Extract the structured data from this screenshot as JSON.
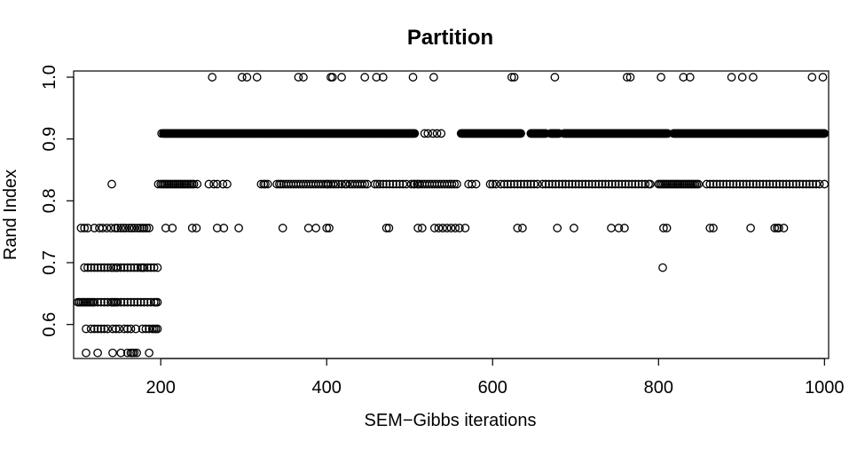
{
  "chart_data": {
    "type": "scatter",
    "title": "Partition",
    "xlabel": "SEM−Gibbs iterations",
    "ylabel": "Rand Index",
    "xlim": [
      95,
      1005
    ],
    "ylim": [
      0.545,
      1.01
    ],
    "xticks": [
      200,
      400,
      600,
      800,
      1000
    ],
    "xtick_labels": [
      "200",
      "400",
      "600",
      "800",
      "1000"
    ],
    "yticks": [
      0.6,
      0.7,
      0.8,
      0.9,
      1.0
    ],
    "ytick_labels": [
      "0.6",
      "0.7",
      "0.8",
      "0.9",
      "1.0"
    ],
    "grid": false,
    "legend": "none",
    "marker": "open-circle",
    "color": "#000000",
    "series": [
      {
        "x": [
          262,
          298,
          304,
          316,
          366,
          372,
          405,
          407,
          418,
          446,
          460,
          468,
          504,
          529,
          623,
          626,
          675,
          762,
          766,
          803,
          830,
          838,
          888,
          901,
          914,
          985,
          998
        ],
        "y": [
          1,
          1,
          1,
          1,
          1,
          1,
          1,
          1,
          1,
          1,
          1,
          1,
          1,
          1,
          1,
          1,
          1,
          1,
          1,
          1,
          1,
          1,
          1,
          1,
          1,
          1,
          1
        ]
      },
      {
        "x": [
          201,
          203,
          204,
          205,
          206,
          207,
          208,
          209,
          210,
          211,
          212,
          213,
          214,
          215,
          216,
          217,
          218,
          219,
          220,
          221,
          222,
          223,
          224,
          225,
          226,
          227,
          228,
          229,
          230,
          231,
          232,
          233,
          234,
          235,
          236,
          237,
          238,
          239,
          240,
          241,
          242,
          243,
          244,
          245,
          246,
          247,
          248,
          249,
          250,
          251,
          252,
          253,
          254,
          255,
          256,
          257,
          258,
          259,
          260,
          261,
          262,
          263,
          264,
          265,
          266,
          267,
          268,
          269,
          270,
          271,
          272,
          273,
          274,
          275,
          276,
          277,
          278,
          279,
          280,
          281,
          282,
          283,
          284,
          285,
          286,
          287,
          288,
          289,
          290,
          291,
          292,
          293,
          294,
          295,
          296,
          297,
          298,
          299,
          300,
          301,
          302,
          303,
          304,
          305,
          306,
          307,
          308,
          309,
          310,
          311,
          312,
          313,
          314,
          315,
          316,
          317,
          318,
          319,
          320,
          321,
          322,
          323,
          324,
          325,
          326,
          327,
          328,
          329,
          330,
          331,
          332,
          333,
          334,
          335,
          336,
          337,
          338,
          339,
          340,
          341,
          342,
          343,
          344,
          345,
          346,
          347,
          348,
          349,
          350,
          351,
          352,
          353,
          354,
          355,
          356,
          357,
          358,
          359,
          360,
          361,
          362,
          363,
          364,
          365,
          366,
          367,
          368,
          369,
          370,
          371,
          372,
          373,
          374,
          375,
          376,
          377,
          378,
          379,
          380,
          381,
          382,
          383,
          384,
          385,
          386,
          387,
          388,
          389,
          390,
          391,
          392,
          393,
          394,
          395,
          396,
          397,
          398,
          399,
          400,
          401,
          402,
          403,
          404,
          405,
          406,
          407,
          408,
          409,
          410,
          411,
          412,
          413,
          414,
          415,
          416,
          417,
          418,
          419,
          420,
          421,
          422,
          423,
          424,
          425,
          426,
          427,
          428,
          429,
          430,
          431,
          432,
          433,
          434,
          435,
          436,
          437,
          438,
          439,
          440,
          441,
          442,
          443,
          444,
          445,
          446,
          447,
          448,
          449,
          450,
          451,
          452,
          453,
          454,
          455,
          456,
          457,
          458,
          459,
          460,
          461,
          462,
          463,
          464,
          465,
          466,
          467,
          468,
          469,
          470,
          471,
          472,
          473,
          474,
          475,
          476,
          477,
          478,
          479,
          480,
          481,
          482,
          483,
          484,
          485,
          486,
          487,
          488,
          489,
          490,
          491,
          492,
          493,
          494,
          495,
          496,
          497,
          498,
          499,
          500,
          501,
          502,
          503,
          504,
          505,
          506,
          518,
          522,
          528,
          533,
          538,
          562,
          563,
          564,
          565,
          566,
          567,
          568,
          569,
          570,
          571,
          572,
          573,
          574,
          575,
          576,
          577,
          578,
          579,
          580,
          581,
          582,
          583,
          584,
          585,
          586,
          587,
          588,
          589,
          590,
          591,
          592,
          593,
          594,
          595,
          596,
          597,
          598,
          599,
          600,
          601,
          602,
          603,
          604,
          605,
          606,
          607,
          608,
          609,
          610,
          611,
          612,
          613,
          614,
          615,
          616,
          617,
          618,
          619,
          620,
          621,
          622,
          623,
          624,
          625,
          626,
          627,
          628,
          629,
          630,
          631,
          632,
          633,
          634,
          646,
          647,
          648,
          649,
          650,
          651,
          652,
          653,
          654,
          655,
          656,
          657,
          658,
          659,
          660,
          661,
          662,
          663,
          664,
          670,
          671,
          672,
          673,
          674,
          675,
          676,
          677,
          678,
          679,
          680,
          686,
          687,
          688,
          689,
          690,
          691,
          692,
          693,
          694,
          695,
          696,
          697,
          698,
          699,
          700,
          701,
          702,
          703,
          704,
          705,
          706,
          707,
          708,
          709,
          710,
          711,
          712,
          713,
          714,
          715,
          716,
          717,
          718,
          719,
          720,
          721,
          722,
          723,
          724,
          725,
          726,
          727,
          728,
          729,
          730,
          731,
          732,
          733,
          734,
          735,
          736,
          737,
          738,
          739,
          740,
          741,
          742,
          743,
          744,
          745,
          746,
          747,
          748,
          749,
          750,
          751,
          752,
          753,
          754,
          755,
          756,
          757,
          758,
          759,
          760,
          761,
          762,
          763,
          764,
          765,
          766,
          767,
          768,
          769,
          770,
          771,
          772,
          773,
          774,
          775,
          776,
          777,
          778,
          779,
          780,
          781,
          782,
          783,
          784,
          785,
          786,
          787,
          788,
          789,
          790,
          791,
          792,
          793,
          794,
          795,
          796,
          797,
          798,
          799,
          800,
          801,
          802,
          803,
          804,
          805,
          806,
          807,
          808,
          809,
          810,
          811,
          818,
          819,
          820,
          821,
          822,
          823,
          824,
          825,
          826,
          827,
          828,
          829,
          830,
          831,
          832,
          833,
          834,
          835,
          836,
          837,
          838,
          839,
          840,
          841,
          842,
          843,
          844,
          845,
          846,
          847,
          848,
          849,
          850,
          851,
          852,
          853,
          854,
          855,
          856,
          857,
          858,
          859,
          860,
          861,
          862,
          863,
          864,
          865,
          866,
          867,
          868,
          869,
          870,
          871,
          872,
          873,
          874,
          875,
          876,
          877,
          878,
          879,
          880,
          881,
          882,
          883,
          884,
          885,
          886,
          887,
          888,
          889,
          890,
          891,
          892,
          893,
          894,
          895,
          896,
          897,
          898,
          899,
          900,
          901,
          902,
          903,
          904,
          905,
          906,
          907,
          908,
          909,
          910,
          911,
          912,
          913,
          914,
          915,
          916,
          917,
          918,
          919,
          920,
          921,
          922,
          923,
          924,
          925,
          926,
          927,
          928,
          929,
          930,
          931,
          932,
          933,
          934,
          935,
          936,
          937,
          938,
          939,
          940,
          941,
          942,
          943,
          944,
          945,
          946,
          947,
          948,
          949,
          950,
          951,
          952,
          953,
          954,
          955,
          956,
          957,
          958,
          959,
          960,
          961,
          962,
          963,
          964,
          965,
          966,
          967,
          968,
          969,
          970,
          971,
          972,
          973,
          974,
          975,
          976,
          977,
          978,
          979,
          980,
          981,
          982,
          983,
          984,
          985,
          986,
          987,
          988,
          989,
          990,
          991,
          992,
          993,
          994,
          995,
          996,
          997,
          998,
          999,
          1000
        ],
        "y": 0.909
      },
      {
        "x": [
          197,
          200,
          202,
          204,
          206,
          208,
          210,
          212,
          214,
          216,
          218,
          220,
          222,
          224,
          226,
          228,
          230,
          232,
          234,
          236,
          238,
          240,
          244,
          258,
          264,
          268,
          275,
          280,
          321,
          324,
          326,
          329,
          340,
          343,
          345,
          348,
          351,
          354,
          357,
          360,
          363,
          366,
          369,
          372,
          375,
          378,
          381,
          384,
          387,
          390,
          393,
          396,
          399,
          402,
          405,
          408,
          411,
          414,
          418,
          422,
          424,
          428,
          431,
          434,
          437,
          440,
          443,
          446,
          449,
          458,
          461,
          464,
          468,
          472,
          476,
          480,
          484,
          488,
          492,
          496,
          502,
          506,
          509,
          512,
          515,
          518,
          521,
          524,
          527,
          530,
          533,
          536,
          539,
          542,
          545,
          548,
          551,
          554,
          557,
          571,
          575,
          580,
          597,
          600,
          604,
          610,
          614,
          618,
          622,
          626,
          630,
          634,
          638,
          642,
          646,
          650,
          654,
          660,
          664,
          668,
          672,
          676,
          680,
          684,
          688,
          692,
          696,
          700,
          704,
          708,
          712,
          716,
          720,
          724,
          728,
          732,
          736,
          740,
          744,
          748,
          752,
          756,
          760,
          764,
          768,
          772,
          776,
          780,
          784,
          788,
          790,
          800,
          802,
          804,
          806,
          808,
          810,
          812,
          814,
          816,
          818,
          820,
          822,
          824,
          826,
          828,
          830,
          832,
          834,
          836,
          838,
          840,
          842,
          844,
          846,
          848,
          858,
          862,
          866,
          870,
          874,
          878,
          882,
          886,
          890,
          894,
          898,
          902,
          906,
          910,
          914,
          918,
          922,
          926,
          930,
          934,
          938,
          942,
          946,
          950,
          954,
          958,
          962,
          966,
          970,
          974,
          978,
          982,
          986,
          990,
          994,
          1000
        ],
        "y": 0.827
      },
      {
        "x": [
          141,
          401,
          505,
          510
        ],
        "y": 0.827
      },
      {
        "x": [
          104,
          108,
          112,
          120,
          126,
          130,
          135,
          140,
          145,
          148,
          152,
          155,
          158,
          162,
          165,
          168,
          172,
          175,
          178,
          180,
          183,
          186,
          206,
          214,
          238,
          243,
          268,
          276,
          294,
          347,
          378,
          387,
          400,
          403,
          472,
          475,
          510,
          515,
          530,
          535,
          540,
          545,
          550,
          555,
          560,
          567,
          630,
          636,
          678,
          698,
          743,
          752,
          759,
          806,
          810,
          862,
          866,
          911,
          940,
          943,
          945,
          951
        ],
        "y": 0.756
      },
      {
        "x": [
          108,
          112,
          116,
          120,
          124,
          128,
          132,
          136,
          140,
          143,
          146,
          148,
          152,
          156,
          160,
          164,
          168,
          172,
          176,
          178,
          180,
          184,
          188,
          192,
          196,
          805
        ],
        "y": 0.692
      },
      {
        "x": [
          100,
          102,
          104,
          106,
          108,
          110,
          112,
          114,
          116,
          118,
          120,
          124,
          128,
          132,
          136,
          140,
          142,
          144,
          146,
          148,
          152,
          156,
          160,
          164,
          168,
          172,
          176,
          180,
          184,
          188,
          192,
          194,
          196
        ],
        "y": 0.636
      },
      {
        "x": [
          110,
          116,
          120,
          124,
          128,
          132,
          136,
          142,
          146,
          150,
          156,
          160,
          164,
          170,
          178,
          182,
          186,
          190,
          192,
          194,
          196
        ],
        "y": 0.593
      },
      {
        "x": [
          110,
          124,
          142,
          152,
          160,
          164,
          166,
          168,
          171,
          186
        ],
        "y": 0.554
      }
    ]
  }
}
